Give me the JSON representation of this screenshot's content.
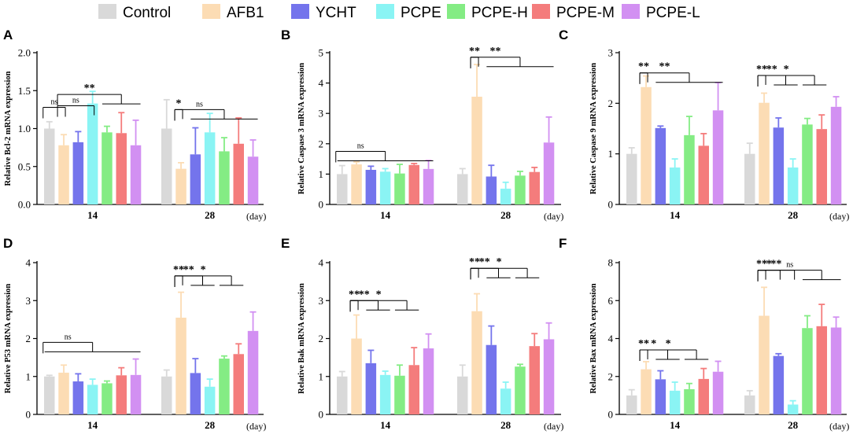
{
  "legend": [
    {
      "name": "Control",
      "color": "#d9d9d9"
    },
    {
      "name": "AFB1",
      "color": "#fcdcb4"
    },
    {
      "name": "YCHT",
      "color": "#7474ec"
    },
    {
      "name": "PCPE",
      "color": "#8af4f4"
    },
    {
      "name": "PCPE-H",
      "color": "#84ec84"
    },
    {
      "name": "PCPE-M",
      "color": "#f47c7c"
    },
    {
      "name": "PCPE-L",
      "color": "#d290f2"
    }
  ],
  "chart_data": [
    {
      "panel": "A",
      "type": "bar",
      "ylabel": "Relative Bcl-2  mRNA expression",
      "xunit": "(day)",
      "categories": [
        "14",
        "28"
      ],
      "ylim": [
        0,
        2.0
      ],
      "yticks": [
        "0.0",
        "0.5",
        "1.0",
        "1.5",
        "2.0"
      ],
      "values": [
        [
          1.0,
          0.78,
          0.82,
          1.33,
          0.95,
          0.94,
          0.78
        ],
        [
          1.0,
          0.47,
          0.66,
          0.95,
          0.7,
          0.8,
          0.63
        ]
      ],
      "errors": [
        [
          0.09,
          0.14,
          0.14,
          0.16,
          0.08,
          0.27,
          0.33
        ],
        [
          0.38,
          0.08,
          0.35,
          0.25,
          0.18,
          0.34,
          0.22
        ]
      ],
      "annotations": [
        "ns",
        "**",
        "ns",
        "*",
        "ns"
      ]
    },
    {
      "panel": "B",
      "type": "bar",
      "ylabel": "Relative Caspase 3  mRNA expression",
      "xunit": "(day)",
      "categories": [
        "14",
        "28"
      ],
      "ylim": [
        0,
        5
      ],
      "yticks": [
        "0",
        "1",
        "2",
        "3",
        "4",
        "5"
      ],
      "values": [
        [
          1.0,
          1.32,
          1.14,
          1.08,
          1.02,
          1.3,
          1.17
        ],
        [
          1.0,
          3.55,
          0.92,
          0.52,
          0.95,
          1.07,
          2.04
        ]
      ],
      "errors": [
        [
          0.28,
          0.08,
          0.12,
          0.1,
          0.3,
          0.05,
          0.28
        ],
        [
          0.18,
          1.06,
          0.37,
          0.21,
          0.14,
          0.15,
          0.84
        ]
      ],
      "annotations": [
        "ns",
        "**",
        "**"
      ]
    },
    {
      "panel": "C",
      "type": "bar",
      "ylabel": "Relative Caspase 9  mRNA expression",
      "xunit": "(day)",
      "categories": [
        "14",
        "28"
      ],
      "ylim": [
        0,
        3
      ],
      "yticks": [
        "0",
        "1",
        "2",
        "3"
      ],
      "values": [
        [
          1.0,
          2.32,
          1.51,
          0.73,
          1.37,
          1.16,
          1.86
        ],
        [
          1.0,
          2.01,
          1.52,
          0.73,
          1.58,
          1.49,
          1.93
        ]
      ],
      "errors": [
        [
          0.12,
          0.22,
          0.04,
          0.17,
          0.37,
          0.24,
          0.55
        ],
        [
          0.21,
          0.19,
          0.19,
          0.17,
          0.12,
          0.28,
          0.2
        ]
      ],
      "annotations": [
        "**",
        "**",
        "**",
        "**",
        "*"
      ]
    },
    {
      "panel": "D",
      "type": "bar",
      "ylabel": "Relative P53  mRNA expression",
      "xunit": "(day)",
      "categories": [
        "14",
        "28"
      ],
      "ylim": [
        0,
        4
      ],
      "yticks": [
        "0",
        "1",
        "2",
        "3",
        "4"
      ],
      "values": [
        [
          1.0,
          1.1,
          0.87,
          0.78,
          0.82,
          1.03,
          1.04
        ],
        [
          1.0,
          2.55,
          1.09,
          0.73,
          1.47,
          1.59,
          2.2
        ]
      ],
      "errors": [
        [
          0.03,
          0.2,
          0.2,
          0.15,
          0.06,
          0.2,
          0.42
        ],
        [
          0.17,
          0.67,
          0.38,
          0.2,
          0.07,
          0.27,
          0.5
        ]
      ],
      "annotations": [
        "ns",
        "**",
        "**",
        "*"
      ]
    },
    {
      "panel": "E",
      "type": "bar",
      "ylabel": "Relative Bak  mRNA expression",
      "xunit": "(day)",
      "categories": [
        "14",
        "28"
      ],
      "ylim": [
        0,
        4
      ],
      "yticks": [
        "0",
        "1",
        "2",
        "3",
        "4"
      ],
      "values": [
        [
          1.0,
          2.0,
          1.35,
          1.04,
          1.02,
          1.3,
          1.74
        ],
        [
          1.0,
          2.72,
          1.83,
          0.68,
          1.26,
          1.8,
          1.98
        ]
      ],
      "errors": [
        [
          0.13,
          0.62,
          0.34,
          0.1,
          0.28,
          0.46,
          0.38
        ],
        [
          0.3,
          0.46,
          0.5,
          0.17,
          0.06,
          0.33,
          0.43
        ]
      ],
      "annotations": [
        "**",
        "**",
        "*",
        "**",
        "**",
        "*"
      ]
    },
    {
      "panel": "F",
      "type": "bar",
      "ylabel": "Relative Bax  mRNA expression",
      "xunit": "(day)",
      "categories": [
        "14",
        "28"
      ],
      "ylim": [
        0,
        8
      ],
      "yticks": [
        "0",
        "2",
        "4",
        "6",
        "8"
      ],
      "values": [
        [
          1.0,
          2.38,
          1.85,
          1.25,
          1.33,
          1.87,
          2.25
        ],
        [
          1.0,
          5.2,
          3.08,
          0.52,
          4.55,
          4.65,
          4.58
        ]
      ],
      "errors": [
        [
          0.3,
          0.4,
          0.45,
          0.45,
          0.3,
          0.55,
          0.55
        ],
        [
          0.25,
          1.5,
          0.12,
          0.2,
          0.65,
          1.15,
          0.55
        ]
      ],
      "annotations": [
        "**",
        "*",
        "*",
        "**",
        "*",
        "**",
        "ns"
      ]
    }
  ]
}
